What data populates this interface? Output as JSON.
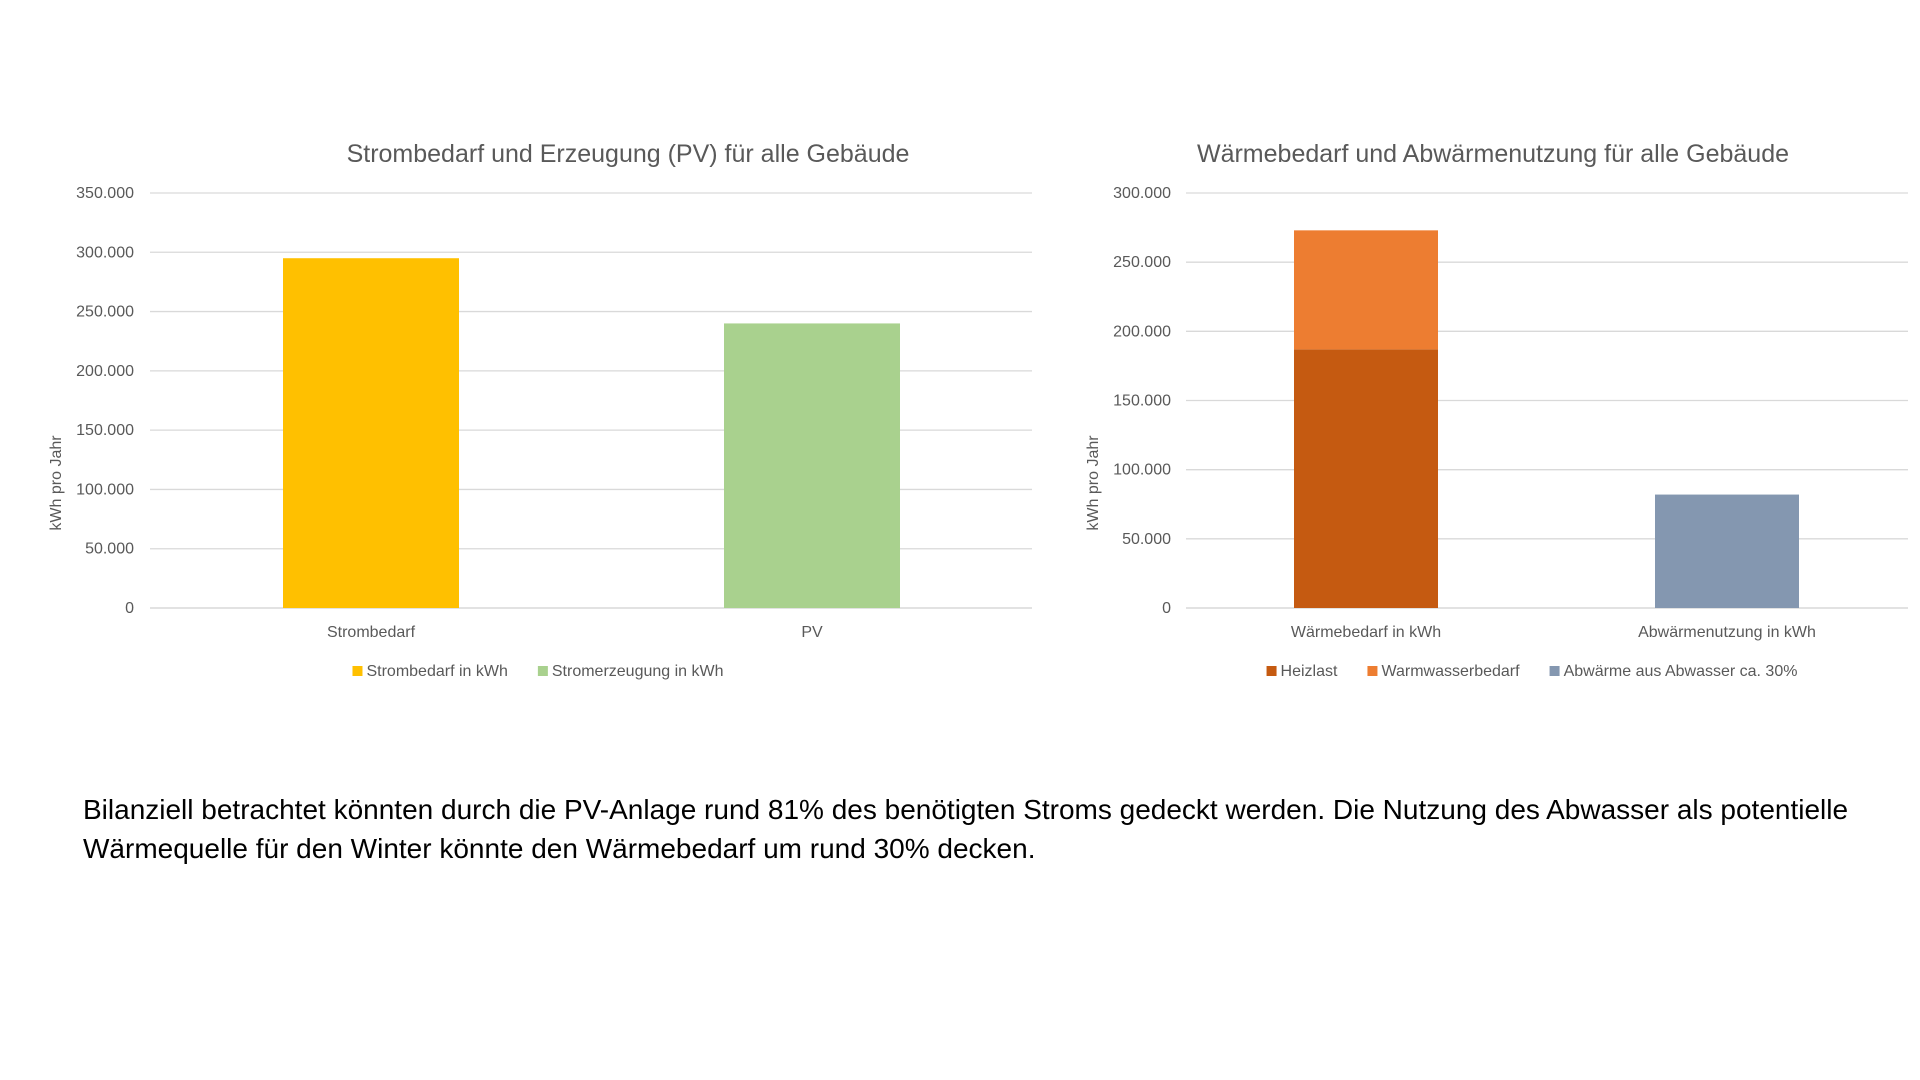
{
  "chart_data": [
    {
      "type": "bar",
      "title": "Strombedarf und Erzeugung (PV) für alle Gebäude",
      "xlabel": "",
      "ylabel": "kWh pro Jahr",
      "ylim": [
        0,
        350000
      ],
      "yticks": [
        0,
        50000,
        100000,
        150000,
        200000,
        250000,
        300000,
        350000
      ],
      "ytick_labels": [
        "0",
        "50.000",
        "100.000",
        "150.000",
        "200.000",
        "250.000",
        "300.000",
        "350.000"
      ],
      "grid": true,
      "legend_position": "bottom",
      "categories": [
        "Strombedarf",
        "PV"
      ],
      "series": [
        {
          "name": "Strombedarf in kWh",
          "color": "#ffc000",
          "values": [
            295000,
            null
          ]
        },
        {
          "name": "Stromerzeugung in kWh",
          "color": "#a9d18e",
          "values": [
            null,
            240000
          ]
        }
      ]
    },
    {
      "type": "bar",
      "stacked": true,
      "title": "Wärmebedarf und Abwärmenutzung für alle Gebäude",
      "xlabel": "",
      "ylabel": "kWh pro Jahr",
      "ylim": [
        0,
        300000
      ],
      "yticks": [
        0,
        50000,
        100000,
        150000,
        200000,
        250000,
        300000
      ],
      "ytick_labels": [
        "0",
        "50.000",
        "100.000",
        "150.000",
        "200.000",
        "250.000",
        "300.000"
      ],
      "grid": true,
      "legend_position": "bottom",
      "categories": [
        "Wärmebedarf in kWh",
        "Abwärmenutzung in kWh"
      ],
      "series": [
        {
          "name": "Heizlast",
          "color": "#c55a11",
          "values": [
            187000,
            null
          ]
        },
        {
          "name": "Warmwasserbedarf",
          "color": "#ed7d31",
          "values": [
            86000,
            null
          ]
        },
        {
          "name": "Abwärme aus Abwasser ca. 30%",
          "color": "#8497b0",
          "values": [
            null,
            82000
          ]
        }
      ]
    }
  ],
  "summary": {
    "text": "Bilanziell betrachtet könnten durch die PV-Anlage rund 81% des benötigten Stroms gedeckt werden. Die Nutzung des Abwasser als potentielle Wärmequelle für den Winter könnte den Wärmebedarf um rund 30% decken."
  }
}
